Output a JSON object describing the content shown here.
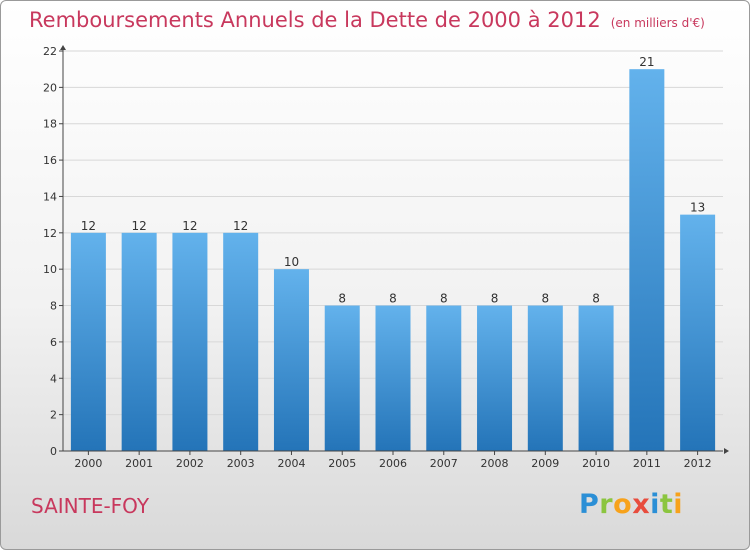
{
  "header": {
    "title": "Remboursements Annuels de la Dette de 2000 à 2012",
    "unit": "(en milliers d'€)"
  },
  "footer": {
    "commune": "SAINTE-FOY",
    "brand_letters": [
      "P",
      "r",
      "o",
      "x",
      "i",
      "t",
      "i"
    ]
  },
  "colors": {
    "title": "#c8385d",
    "bar_top": "#63b2ec",
    "bar_bottom": "#2474b8",
    "axis": "#444444",
    "grid": "#d8d8d8"
  },
  "chart_data": {
    "type": "bar",
    "title": "Remboursements Annuels de la Dette de 2000 à 2012",
    "xlabel": "",
    "ylabel": "",
    "categories": [
      "2000",
      "2001",
      "2002",
      "2003",
      "2004",
      "2005",
      "2006",
      "2007",
      "2008",
      "2009",
      "2010",
      "2011",
      "2012"
    ],
    "values": [
      12,
      12,
      12,
      12,
      10,
      8,
      8,
      8,
      8,
      8,
      8,
      21,
      13
    ],
    "ylim": [
      0,
      22
    ],
    "yticks": [
      0,
      2,
      4,
      6,
      8,
      10,
      12,
      14,
      16,
      18,
      20,
      22
    ],
    "grid": true,
    "legend": "none"
  }
}
